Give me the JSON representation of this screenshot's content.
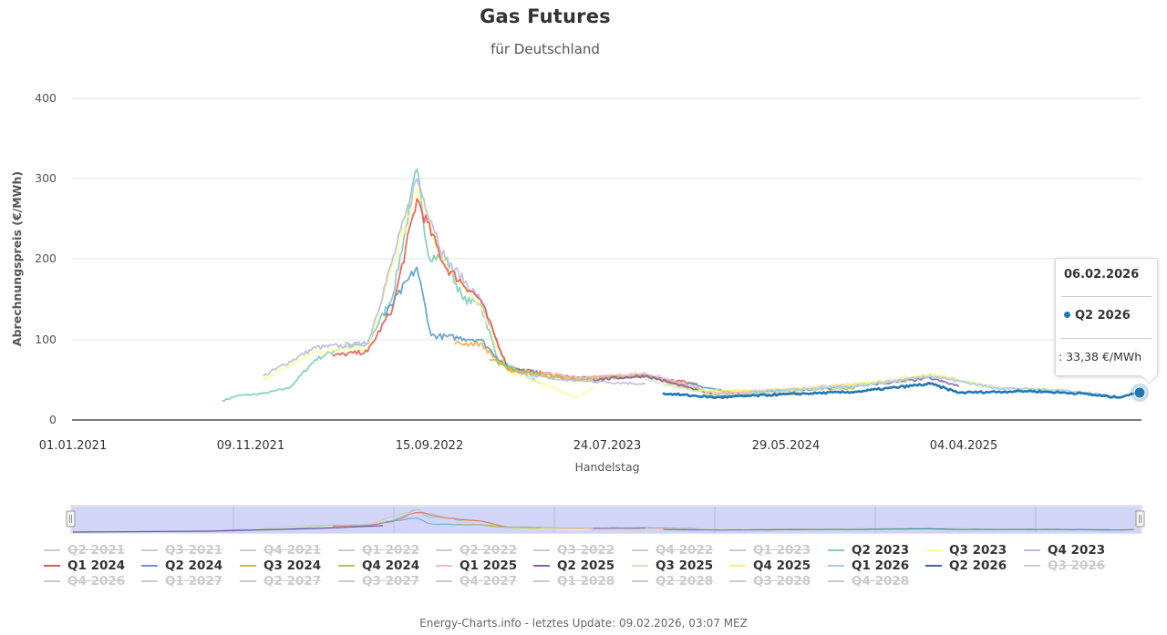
{
  "header": {
    "title": "Gas Futures",
    "subtitle": "für Deutschland"
  },
  "footer": {
    "credit": "Energy-Charts.info - letztes Update: 09.02.2026, 03:07 MEZ"
  },
  "tooltip": {
    "date": "06.02.2026",
    "series": "Q2 2026",
    "value": ": 33,38 €/MWh",
    "color": "#1f77b4"
  },
  "chart_data": {
    "type": "line",
    "title": "Gas Futures",
    "subtitle": "für Deutschland",
    "xlabel": "Handelstag",
    "ylabel": "Abrechnungspreis (€/MWh)",
    "ylim": [
      0,
      400
    ],
    "yticks": [
      "0",
      "100",
      "200",
      "300",
      "400"
    ],
    "xticks": [
      "01.01.2021",
      "09.11.2021",
      "15.09.2022",
      "24.07.2023",
      "29.05.2024",
      "04.04.2025"
    ],
    "grid": true,
    "legend_position": "bottom",
    "navigator": true,
    "highlighted_point": {
      "series": "Q2 2026",
      "date": "06.02.2026",
      "value": 33.38,
      "unit": "€/MWh"
    },
    "series": [
      {
        "name": "Q2 2023",
        "color": "#7fcdbb",
        "visible": true,
        "x": [
          "2021-09-20",
          "2021-10-15",
          "2021-12-01",
          "2022-01-15",
          "2022-03-01",
          "2022-04-15",
          "2022-06-01",
          "2022-07-15",
          "2022-08-26",
          "2022-09-15",
          "2022-10-15",
          "2022-11-15",
          "2022-12-15",
          "2023-01-15",
          "2023-03-31"
        ],
        "values": [
          24,
          30,
          33,
          40,
          75,
          90,
          95,
          155,
          312,
          205,
          200,
          150,
          145,
          75,
          45
        ]
      },
      {
        "name": "Q3 2023",
        "color": "#ffff99",
        "visible": true,
        "x": [
          "2021-12-01",
          "2022-03-01",
          "2022-06-01",
          "2022-08-26",
          "2022-10-15",
          "2022-12-15",
          "2023-02-01",
          "2023-04-15",
          "2023-06-01",
          "2023-06-30"
        ],
        "values": [
          50,
          85,
          90,
          290,
          190,
          140,
          60,
          42,
          28,
          40
        ]
      },
      {
        "name": "Q4 2023",
        "color": "#bcbddc",
        "visible": true,
        "x": [
          "2021-12-01",
          "2022-03-01",
          "2022-06-01",
          "2022-08-26",
          "2022-10-15",
          "2022-12-15",
          "2023-02-01",
          "2023-05-01",
          "2023-09-29"
        ],
        "values": [
          55,
          90,
          95,
          300,
          200,
          150,
          62,
          50,
          45
        ]
      },
      {
        "name": "Q1 2024",
        "color": "#e8594c",
        "visible": true,
        "x": [
          "2022-04-01",
          "2022-06-01",
          "2022-07-15",
          "2022-08-26",
          "2022-10-15",
          "2022-12-15",
          "2023-02-01",
          "2023-06-01",
          "2023-10-01",
          "2023-12-29"
        ],
        "values": [
          80,
          85,
          140,
          275,
          190,
          150,
          65,
          52,
          55,
          45
        ]
      },
      {
        "name": "Q2 2024",
        "color": "#5a9fc9",
        "visible": true,
        "x": [
          "2022-07-01",
          "2022-08-26",
          "2022-09-20",
          "2022-12-15",
          "2023-02-01",
          "2023-06-01",
          "2023-10-01",
          "2024-03-28"
        ],
        "values": [
          130,
          190,
          105,
          100,
          65,
          52,
          55,
          30
        ]
      },
      {
        "name": "Q3 2024",
        "color": "#f5a742",
        "visible": true,
        "x": [
          "2022-11-01",
          "2022-12-15",
          "2023-02-01",
          "2023-06-01",
          "2023-10-01",
          "2024-02-01",
          "2024-06-28"
        ],
        "values": [
          95,
          95,
          62,
          52,
          55,
          30,
          33
        ]
      },
      {
        "name": "Q4 2024",
        "color": "#b2c94f",
        "visible": true,
        "x": [
          "2023-01-01",
          "2023-02-01",
          "2023-04-01",
          "2023-06-01",
          "2023-10-01",
          "2024-02-01",
          "2024-06-01",
          "2024-09-30"
        ],
        "values": [
          75,
          65,
          55,
          50,
          55,
          32,
          36,
          40
        ]
      },
      {
        "name": "Q1 2025",
        "color": "#fbb4c4",
        "visible": true,
        "x": [
          "2023-04-01",
          "2023-06-01",
          "2023-10-01",
          "2024-02-01",
          "2024-06-01",
          "2024-10-01",
          "2024-12-31"
        ],
        "values": [
          60,
          52,
          58,
          33,
          38,
          45,
          48
        ]
      },
      {
        "name": "Q2 2025",
        "color": "#8a5fa8",
        "visible": true,
        "x": [
          "2023-07-01",
          "2023-10-01",
          "2024-02-01",
          "2024-06-01",
          "2024-10-01",
          "2025-02-10",
          "2025-03-31"
        ],
        "values": [
          50,
          55,
          30,
          36,
          42,
          52,
          42
        ]
      },
      {
        "name": "Q3 2025",
        "color": "#ccebc5",
        "visible": true,
        "x": [
          "2023-10-01",
          "2024-02-01",
          "2024-06-01",
          "2024-10-01",
          "2025-02-10",
          "2025-06-30"
        ],
        "values": [
          50,
          30,
          36,
          42,
          55,
          38
        ]
      },
      {
        "name": "Q4 2025",
        "color": "#ffed6f",
        "visible": true,
        "x": [
          "2024-01-01",
          "2024-06-01",
          "2024-10-01",
          "2025-02-10",
          "2025-06-01",
          "2025-09-30"
        ],
        "values": [
          36,
          38,
          44,
          57,
          40,
          37
        ]
      },
      {
        "name": "Q1 2026",
        "color": "#a6cee3",
        "visible": true,
        "x": [
          "2024-04-01",
          "2024-10-01",
          "2025-02-10",
          "2025-06-01",
          "2025-10-01",
          "2025-12-31"
        ],
        "values": [
          35,
          42,
          55,
          40,
          37,
          30
        ]
      },
      {
        "name": "Q2 2026",
        "color": "#1f77b4",
        "visible": true,
        "x": [
          "2023-11-01",
          "2024-02-01",
          "2024-06-01",
          "2024-10-01",
          "2025-02-10",
          "2025-04-01",
          "2025-08-01",
          "2025-11-01",
          "2026-01-01",
          "2026-02-06"
        ],
        "values": [
          33,
          28,
          32,
          35,
          45,
          34,
          36,
          33,
          28,
          33.38
        ]
      }
    ]
  },
  "legend": {
    "items": [
      {
        "label": "Q2 2021",
        "color": "#cccccc",
        "visible": false
      },
      {
        "label": "Q3 2021",
        "color": "#cccccc",
        "visible": false
      },
      {
        "label": "Q4 2021",
        "color": "#cccccc",
        "visible": false
      },
      {
        "label": "Q1 2022",
        "color": "#cccccc",
        "visible": false
      },
      {
        "label": "Q2 2022",
        "color": "#cccccc",
        "visible": false
      },
      {
        "label": "Q3 2022",
        "color": "#cccccc",
        "visible": false
      },
      {
        "label": "Q4 2022",
        "color": "#cccccc",
        "visible": false
      },
      {
        "label": "Q1 2023",
        "color": "#cccccc",
        "visible": false
      },
      {
        "label": "Q2 2023",
        "color": "#7fcdbb",
        "visible": true
      },
      {
        "label": "Q3 2023",
        "color": "#ffff99",
        "visible": true
      },
      {
        "label": "Q4 2023",
        "color": "#bcbddc",
        "visible": true
      },
      {
        "label": "Q1 2024",
        "color": "#e8594c",
        "visible": true
      },
      {
        "label": "Q2 2024",
        "color": "#5a9fc9",
        "visible": true
      },
      {
        "label": "Q3 2024",
        "color": "#f5a742",
        "visible": true
      },
      {
        "label": "Q4 2024",
        "color": "#b2c94f",
        "visible": true
      },
      {
        "label": "Q1 2025",
        "color": "#fbb4c4",
        "visible": true
      },
      {
        "label": "Q2 2025",
        "color": "#8a5fa8",
        "visible": true
      },
      {
        "label": "Q3 2025",
        "color": "#ccebc5",
        "visible": true
      },
      {
        "label": "Q4 2025",
        "color": "#ffed6f",
        "visible": true
      },
      {
        "label": "Q1 2026",
        "color": "#a6cee3",
        "visible": true
      },
      {
        "label": "Q2 2026",
        "color": "#1f77b4",
        "visible": true
      },
      {
        "label": "Q3 2026",
        "color": "#cccccc",
        "visible": false
      },
      {
        "label": "Q4 2026",
        "color": "#cccccc",
        "visible": false
      },
      {
        "label": "Q1 2027",
        "color": "#cccccc",
        "visible": false
      },
      {
        "label": "Q2 2027",
        "color": "#cccccc",
        "visible": false
      },
      {
        "label": "Q3 2027",
        "color": "#cccccc",
        "visible": false
      },
      {
        "label": "Q4 2027",
        "color": "#cccccc",
        "visible": false
      },
      {
        "label": "Q1 2028",
        "color": "#cccccc",
        "visible": false
      },
      {
        "label": "Q2 2028",
        "color": "#cccccc",
        "visible": false
      },
      {
        "label": "Q3 2028",
        "color": "#cccccc",
        "visible": false
      },
      {
        "label": "Q4 2028",
        "color": "#cccccc",
        "visible": false
      }
    ]
  }
}
